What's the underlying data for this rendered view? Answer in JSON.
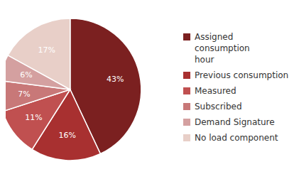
{
  "chart_data": {
    "type": "pie",
    "categories": [
      "Assigned consumption\nhour",
      "Previous consumption",
      "Measured",
      "Subscribed",
      "Demand Signature",
      "No load component"
    ],
    "values": [
      43,
      16,
      11,
      7,
      6,
      17
    ],
    "value_labels": [
      "43%",
      "16%",
      "11%",
      "7%",
      "6%",
      "17%"
    ],
    "colors": [
      "#7B2020",
      "#A83030",
      "#C05050",
      "#C87878",
      "#D4A0A0",
      "#E8CFC8"
    ],
    "data_labels": true,
    "legend": "right"
  }
}
